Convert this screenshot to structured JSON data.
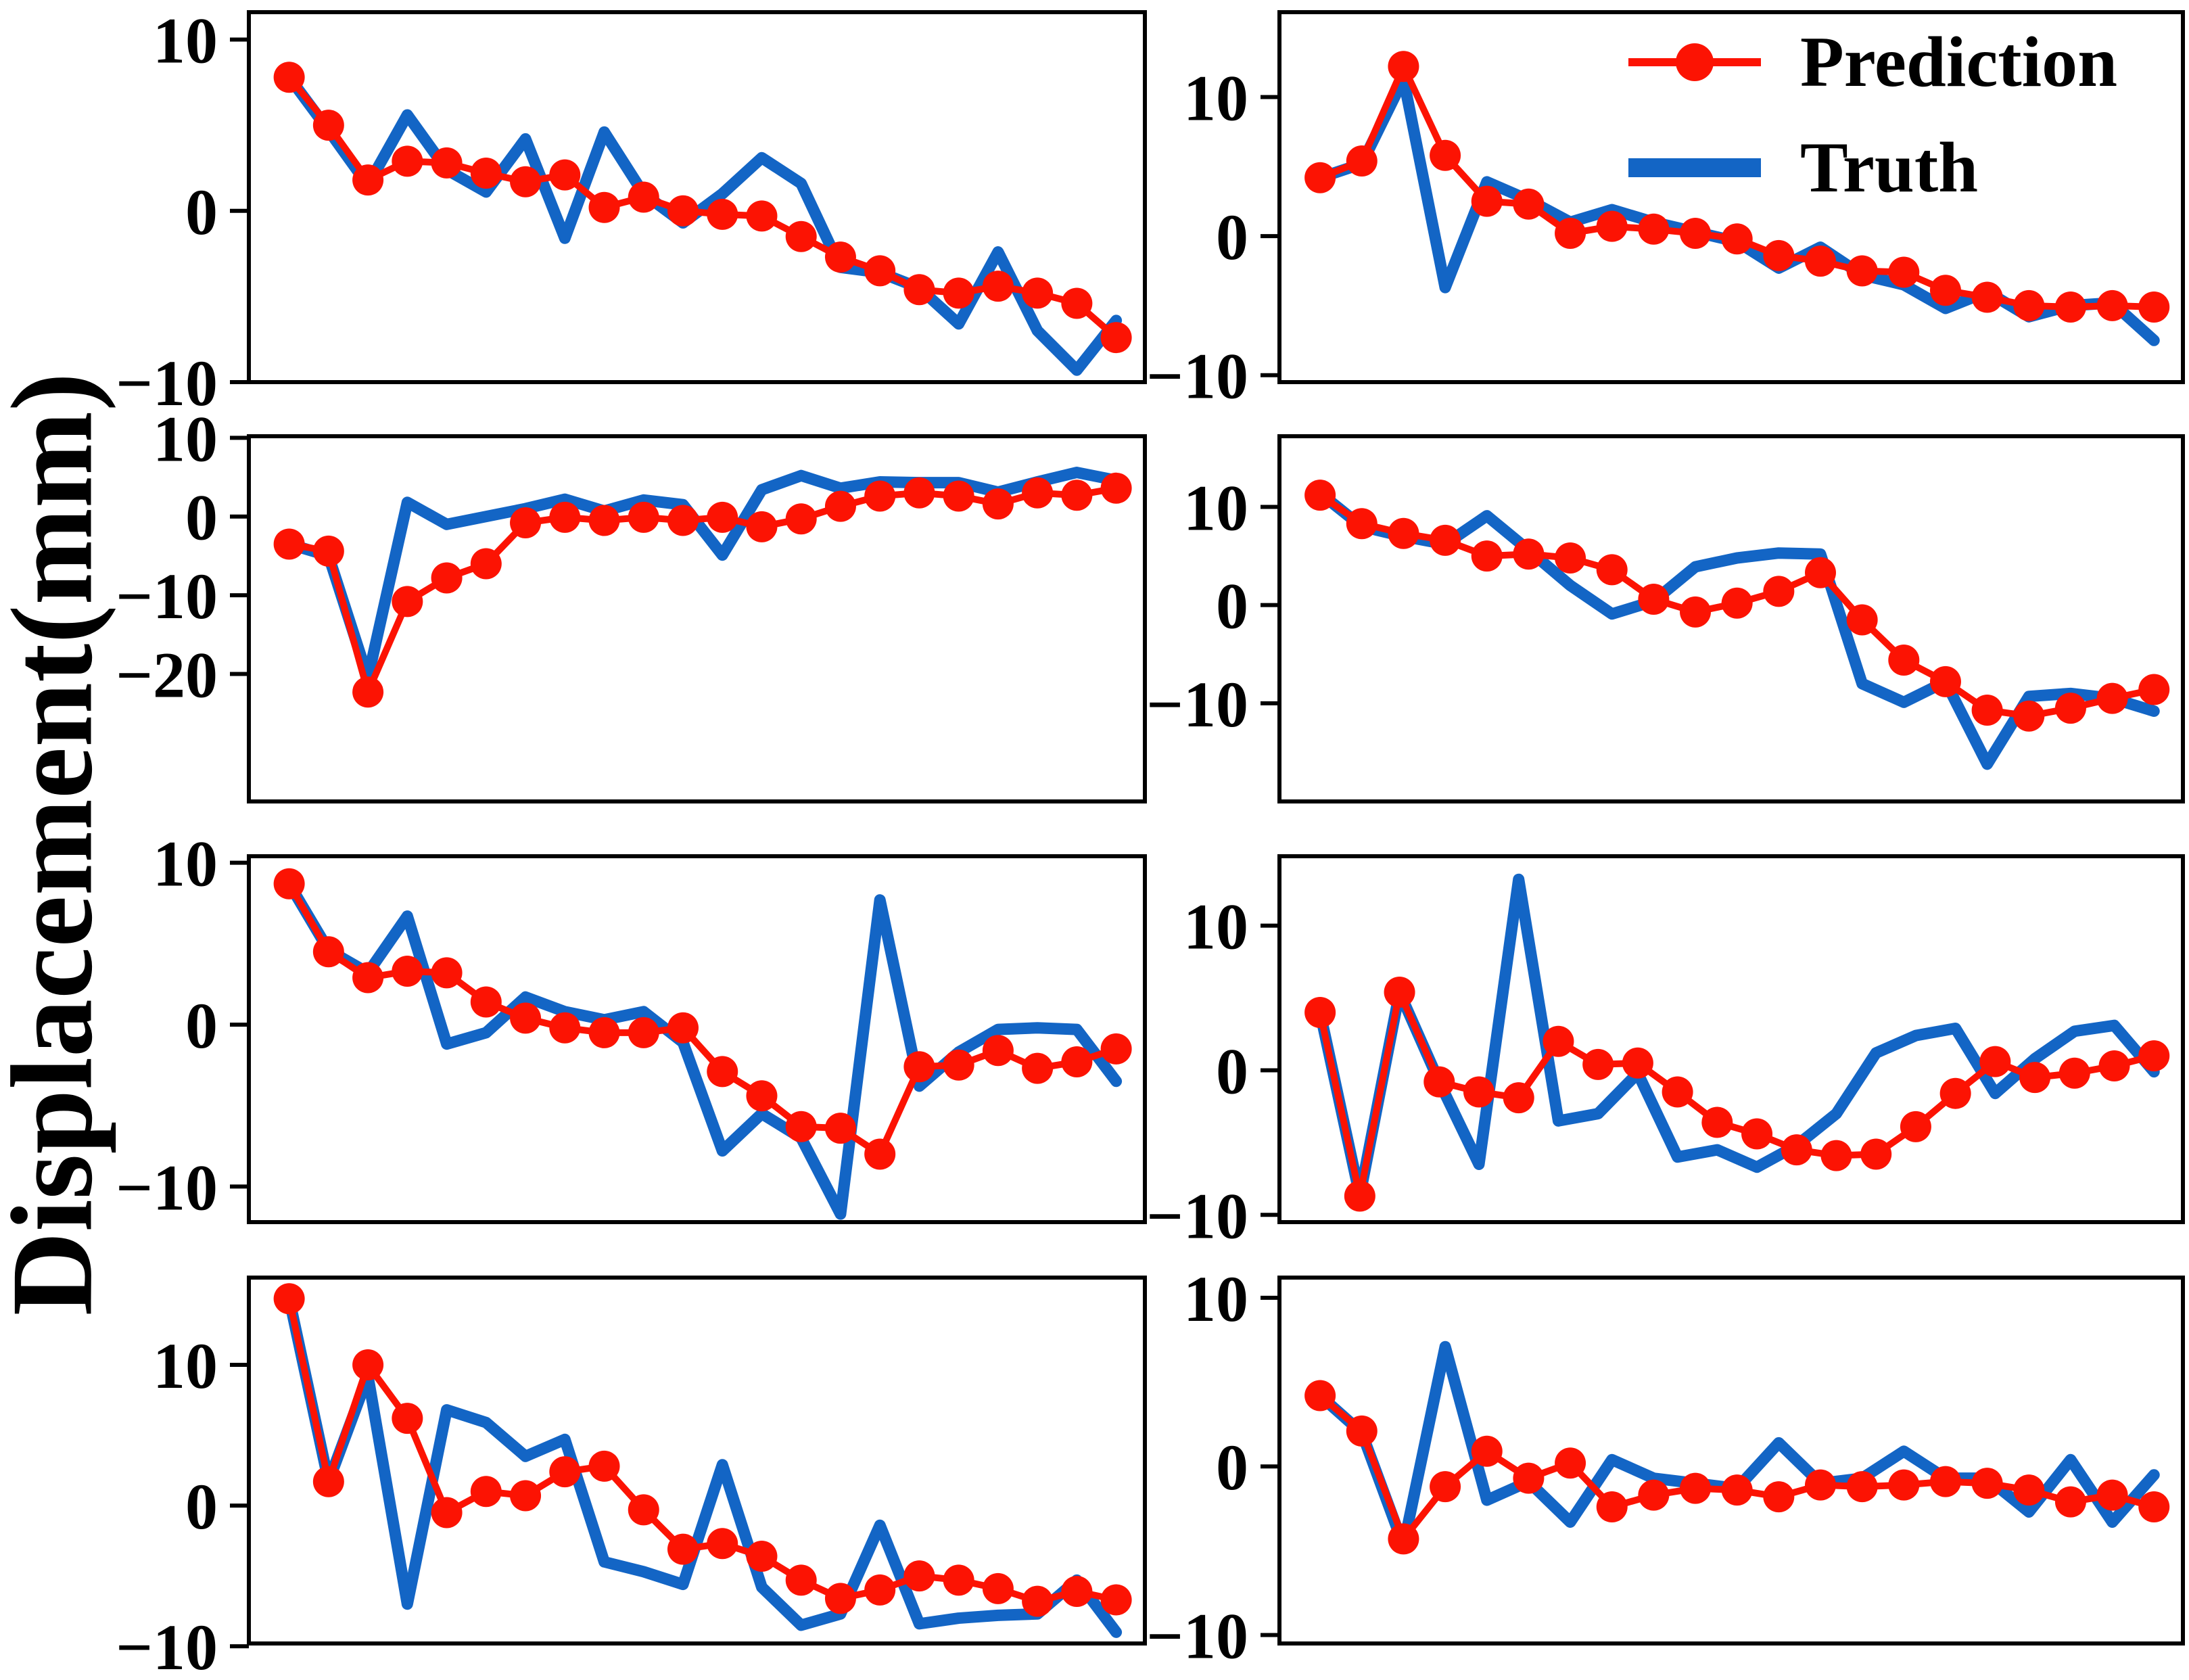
{
  "figure": {
    "ylabel": "Displacement(mm)",
    "background": "#ffffff",
    "axis_color": "#000000"
  },
  "legend": {
    "position": "upper-right",
    "items": [
      {
        "label": "Prediction",
        "color": "#fc1303",
        "marker": "line-circle"
      },
      {
        "label": "Truth",
        "color": "#1365c5",
        "marker": "thick-line"
      }
    ]
  },
  "chart_data": [
    {
      "type": "line",
      "row": 1,
      "col": 1,
      "title": "",
      "xlabel": "",
      "ylabel": "",
      "ylim": [
        -10.0,
        11.6
      ],
      "yticks": [
        10,
        0,
        -10
      ],
      "grid": false,
      "series": [
        {
          "name": "Prediction",
          "values": [
            7.8,
            5.0,
            1.8,
            2.9,
            2.8,
            2.2,
            1.7,
            2.1,
            0.2,
            0.8,
            0.0,
            -0.2,
            -0.3,
            -1.5,
            -2.7,
            -3.5,
            -4.6,
            -4.8,
            -4.4,
            -4.8,
            -5.4,
            -7.4
          ]
        },
        {
          "name": "Truth",
          "values": [
            7.8,
            4.7,
            1.5,
            5.6,
            2.4,
            1.1,
            4.2,
            -1.6,
            4.6,
            1.0,
            -0.7,
            1.0,
            3.1,
            1.6,
            -3.3,
            -3.6,
            -4.5,
            -6.6,
            -2.4,
            -7.0,
            -9.3,
            -6.4
          ]
        }
      ]
    },
    {
      "type": "line",
      "row": 1,
      "col": 2,
      "title": "",
      "xlabel": "",
      "ylabel": "",
      "ylim": [
        -10.5,
        16.1
      ],
      "yticks": [
        10,
        0,
        -10
      ],
      "grid": false,
      "series": [
        {
          "name": "Prediction",
          "values": [
            4.2,
            5.4,
            12.2,
            5.8,
            2.5,
            2.3,
            0.2,
            0.7,
            0.5,
            0.2,
            -0.2,
            -1.4,
            -1.8,
            -2.5,
            -2.6,
            -3.9,
            -4.4,
            -5.0,
            -5.1,
            -5.0,
            -5.1
          ]
        },
        {
          "name": "Truth",
          "values": [
            4.2,
            5.2,
            11.3,
            -3.7,
            3.9,
            2.6,
            1.0,
            1.9,
            1.0,
            0.3,
            -0.4,
            -2.3,
            -0.8,
            -2.8,
            -3.5,
            -5.2,
            -4.0,
            -5.8,
            -5.0,
            -4.8,
            -7.5
          ]
        }
      ]
    },
    {
      "type": "line",
      "row": 2,
      "col": 1,
      "title": "",
      "xlabel": "",
      "ylabel": "",
      "ylim": [
        -36.2,
        10.2
      ],
      "yticks": [
        10,
        0,
        -10,
        -20
      ],
      "grid": false,
      "series": [
        {
          "name": "Prediction",
          "values": [
            -3.5,
            -4.4,
            -22.3,
            -10.8,
            -7.8,
            -6.0,
            -0.8,
            -0.1,
            -0.5,
            -0.1,
            -0.5,
            -0.1,
            -1.3,
            -0.3,
            1.3,
            2.6,
            3.0,
            2.6,
            1.6,
            3.0,
            2.7,
            3.6
          ]
        },
        {
          "name": "Truth",
          "values": [
            -3.5,
            -5.0,
            -20.5,
            1.8,
            -1.0,
            0.0,
            1.0,
            2.2,
            0.7,
            2.1,
            1.5,
            -4.9,
            3.4,
            5.2,
            3.6,
            4.4,
            4.3,
            4.3,
            3.1,
            4.4,
            5.6,
            4.6
          ]
        }
      ]
    },
    {
      "type": "line",
      "row": 2,
      "col": 2,
      "title": "",
      "xlabel": "",
      "ylabel": "",
      "ylim": [
        -20.0,
        17.2
      ],
      "yticks": [
        10,
        0,
        -10
      ],
      "grid": false,
      "series": [
        {
          "name": "Prediction",
          "values": [
            11.2,
            8.3,
            7.3,
            6.6,
            5.0,
            5.2,
            4.8,
            3.6,
            0.6,
            -0.7,
            0.2,
            1.4,
            3.3,
            -1.5,
            -5.6,
            -7.8,
            -10.7,
            -11.3,
            -10.5,
            -9.5,
            -8.6
          ]
        },
        {
          "name": "Truth",
          "values": [
            11.4,
            8.0,
            7.0,
            6.2,
            9.1,
            5.6,
            2.0,
            -0.9,
            0.4,
            3.9,
            4.8,
            5.3,
            5.2,
            -8.0,
            -9.9,
            -7.8,
            -16.2,
            -9.3,
            -9.0,
            -9.5,
            -10.8
          ]
        }
      ]
    },
    {
      "type": "line",
      "row": 3,
      "col": 1,
      "title": "",
      "xlabel": "",
      "ylabel": "",
      "ylim": [
        -12.2,
        10.4
      ],
      "yticks": [
        10,
        0,
        -10
      ],
      "grid": false,
      "series": [
        {
          "name": "Prediction",
          "values": [
            8.7,
            4.5,
            2.9,
            3.3,
            3.2,
            1.4,
            0.4,
            -0.2,
            -0.5,
            -0.5,
            -0.2,
            -2.9,
            -4.4,
            -6.3,
            -6.4,
            -8.0,
            -2.6,
            -2.5,
            -1.6,
            -2.7,
            -2.3,
            -1.5
          ]
        },
        {
          "name": "Truth",
          "values": [
            8.7,
            4.6,
            3.2,
            6.7,
            -1.2,
            -0.5,
            1.7,
            0.8,
            0.3,
            0.8,
            -1.1,
            -7.8,
            -5.5,
            -7.0,
            -11.7,
            7.7,
            -3.8,
            -1.7,
            -0.3,
            -0.2,
            -0.3,
            -3.5
          ]
        }
      ]
    },
    {
      "type": "line",
      "row": 3,
      "col": 2,
      "title": "",
      "xlabel": "",
      "ylabel": "",
      "ylim": [
        -10.5,
        14.8
      ],
      "yticks": [
        10,
        0,
        -10
      ],
      "grid": false,
      "series": [
        {
          "name": "Prediction",
          "values": [
            4.0,
            -8.7,
            5.4,
            -0.8,
            -1.5,
            -1.9,
            2.0,
            0.4,
            0.5,
            -1.5,
            -3.6,
            -4.4,
            -5.5,
            -5.9,
            -5.8,
            -3.9,
            -1.6,
            0.6,
            -0.5,
            -0.2,
            0.3,
            1.0
          ]
        },
        {
          "name": "Truth",
          "values": [
            4.0,
            -8.7,
            5.4,
            -0.8,
            -6.5,
            13.2,
            -3.5,
            -3.0,
            -0.2,
            -6.0,
            -5.5,
            -6.7,
            -5.2,
            -3.0,
            1.2,
            2.4,
            2.9,
            -1.6,
            0.8,
            2.7,
            3.1,
            -0.1
          ]
        }
      ]
    },
    {
      "type": "line",
      "row": 4,
      "col": 1,
      "title": "",
      "xlabel": "",
      "ylabel": "",
      "ylim": [
        -9.8,
        16.2
      ],
      "yticks": [
        10,
        0,
        -10
      ],
      "grid": false,
      "series": [
        {
          "name": "Prediction",
          "values": [
            14.7,
            1.7,
            10.0,
            6.2,
            -0.5,
            1.0,
            0.7,
            2.4,
            2.8,
            -0.3,
            -3.1,
            -2.7,
            -3.6,
            -5.3,
            -6.6,
            -6.0,
            -5.0,
            -5.3,
            -5.9,
            -6.8,
            -6.1,
            -6.7
          ]
        },
        {
          "name": "Truth",
          "values": [
            14.7,
            1.7,
            9.2,
            -7.0,
            6.8,
            5.9,
            3.5,
            4.7,
            -4.0,
            -4.7,
            -5.6,
            2.9,
            -5.8,
            -8.5,
            -7.7,
            -1.4,
            -8.4,
            -8.0,
            -7.8,
            -7.7,
            -5.3,
            -9.0
          ]
        }
      ]
    },
    {
      "type": "line",
      "row": 4,
      "col": 2,
      "title": "",
      "xlabel": "",
      "ylabel": "",
      "ylim": [
        -10.5,
        11.2
      ],
      "yticks": [
        10,
        0,
        -10
      ],
      "grid": false,
      "series": [
        {
          "name": "Prediction",
          "values": [
            4.2,
            2.1,
            -4.3,
            -1.2,
            0.9,
            -0.7,
            0.2,
            -2.4,
            -1.7,
            -1.3,
            -1.4,
            -1.8,
            -1.1,
            -1.2,
            -1.1,
            -0.9,
            -1.0,
            -1.4,
            -2.1,
            -1.7,
            -2.4
          ]
        },
        {
          "name": "Truth",
          "values": [
            4.2,
            2.0,
            -4.7,
            7.1,
            -2.0,
            -0.9,
            -3.3,
            0.4,
            -0.7,
            -1.0,
            -1.3,
            1.4,
            -1.0,
            -0.7,
            0.9,
            -0.7,
            -0.7,
            -2.7,
            0.4,
            -3.3,
            -0.5
          ]
        }
      ]
    }
  ],
  "style": {
    "prediction_color": "#fc1303",
    "truth_color": "#1365c5",
    "truth_linewidth": 17,
    "prediction_linewidth": 10,
    "marker_radius": 23,
    "spine_width": 6,
    "tick_length": 28
  }
}
